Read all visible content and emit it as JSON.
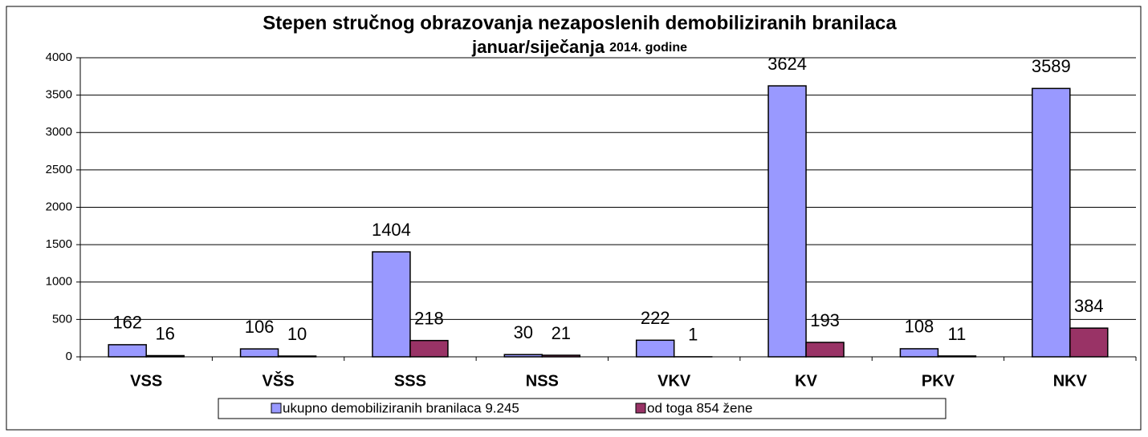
{
  "chart_data": {
    "type": "bar",
    "title": [
      "Stepen stručnog obrazovanja nezaposlenih demobiliziranih branilaca",
      "januar/siječanja",
      "2014. godine"
    ],
    "categories": [
      "VSS",
      "VŠS",
      "SSS",
      "NSS",
      "VKV",
      "KV",
      "PKV",
      "NKV"
    ],
    "series": [
      {
        "name": "ukupno demobiliziranih branilaca 9.245",
        "color": "#9999ff",
        "values": [
          162,
          106,
          1404,
          30,
          222,
          3624,
          108,
          3589
        ]
      },
      {
        "name": "od toga 854 žene",
        "color": "#993366",
        "values": [
          16,
          10,
          218,
          21,
          1,
          193,
          11,
          384
        ]
      }
    ],
    "ylim": [
      0,
      4000
    ],
    "yticks": [
      0,
      500,
      1000,
      1500,
      2000,
      2500,
      3000,
      3500,
      4000
    ],
    "grid": true,
    "legend": "bottom"
  }
}
